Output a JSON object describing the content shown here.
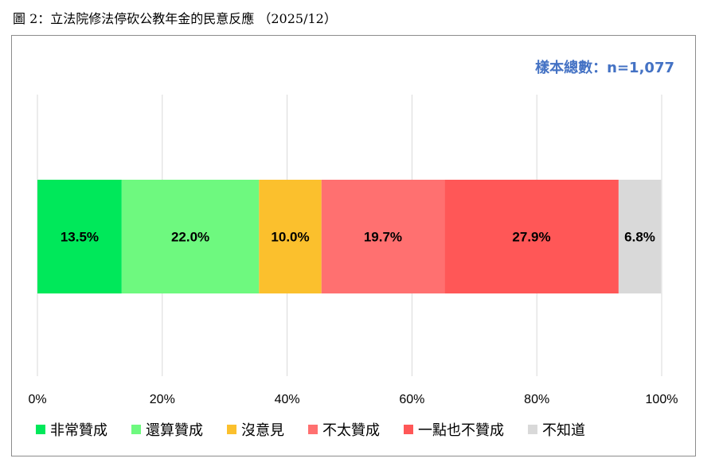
{
  "caption": "圖 2：立法院修法停砍公教年金的民意反應 （2025/12）",
  "sample_size": "樣本總數：n=1,077",
  "chart_data": {
    "type": "bar",
    "orientation": "horizontal",
    "stacked": true,
    "title": "",
    "xlabel": "",
    "ylabel": "",
    "xlim": [
      0,
      100
    ],
    "x_ticks": [
      "0%",
      "20%",
      "40%",
      "60%",
      "80%",
      "100%"
    ],
    "grid": true,
    "legend_position": "bottom",
    "series": [
      {
        "name": "非常贊成",
        "value": 13.5,
        "label": "13.5%",
        "color": "#00e85a"
      },
      {
        "name": "還算贊成",
        "value": 22.0,
        "label": "22.0%",
        "color": "#6ef97f"
      },
      {
        "name": "沒意見",
        "value": 10.0,
        "label": "10.0%",
        "color": "#fbc02d"
      },
      {
        "name": "不太贊成",
        "value": 19.7,
        "label": "19.7%",
        "color": "#ff7070"
      },
      {
        "name": "一點也不贊成",
        "value": 27.9,
        "label": "27.9%",
        "color": "#ff5757"
      },
      {
        "name": "不知道",
        "value": 6.8,
        "label": "6.8%",
        "color": "#d9d9d9"
      }
    ]
  }
}
